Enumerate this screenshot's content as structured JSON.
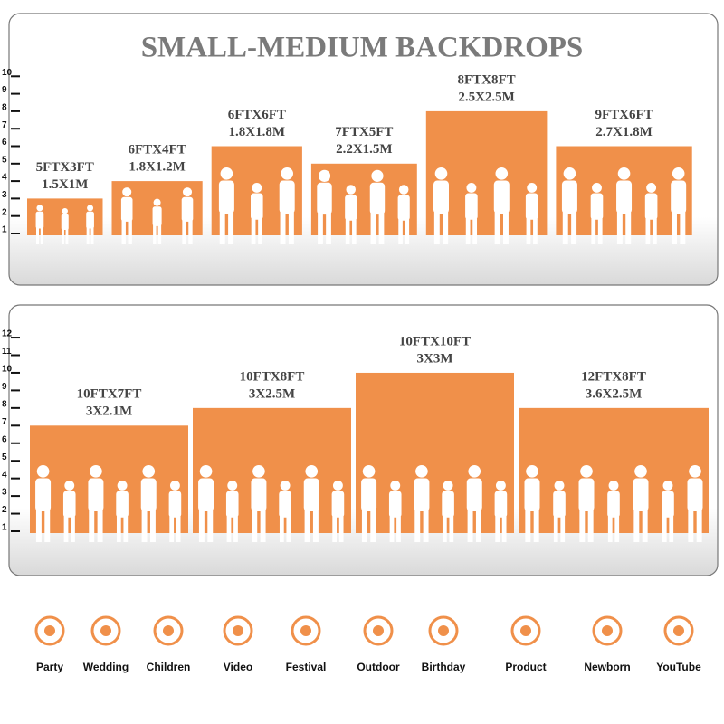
{
  "title": "SMALL-MEDIUM BACKDROPS",
  "panels": [
    {
      "ticks": [
        1,
        2,
        3,
        4,
        5,
        6,
        7,
        8,
        9,
        10
      ],
      "backdrops": [
        {
          "size": "5FTX3FT",
          "metric": "1.5X1M",
          "width": 5,
          "height": 3
        },
        {
          "size": "6FTX4FT",
          "metric": "1.8X1.2M",
          "width": 6,
          "height": 4
        },
        {
          "size": "6FTX6FT",
          "metric": "1.8X1.8M",
          "width": 6,
          "height": 6
        },
        {
          "size": "7FTX5FT",
          "metric": "2.2X1.5M",
          "width": 7,
          "height": 5
        },
        {
          "size": "8FTX8FT",
          "metric": "2.5X2.5M",
          "width": 8,
          "height": 8
        },
        {
          "size": "9FTX6FT",
          "metric": "2.7X1.8M",
          "width": 9,
          "height": 6
        }
      ]
    },
    {
      "ticks": [
        1,
        2,
        3,
        4,
        5,
        6,
        7,
        8,
        9,
        10,
        11,
        12
      ],
      "backdrops": [
        {
          "size": "10FTX7FT",
          "metric": "3X2.1M",
          "width": 10,
          "height": 7
        },
        {
          "size": "10FTX8FT",
          "metric": "3X2.5M",
          "width": 10,
          "height": 8
        },
        {
          "size": "10FTX10FT",
          "metric": "3X3M",
          "width": 10,
          "height": 10
        },
        {
          "size": "12FTX8FT",
          "metric": "3.6X2.5M",
          "width": 12,
          "height": 8
        }
      ]
    }
  ],
  "uses": [
    "Party",
    "Wedding",
    "Children",
    "Video",
    "Festival",
    "Outdoor",
    "Birthday",
    "Product",
    "Newborn",
    "YouTube"
  ]
}
